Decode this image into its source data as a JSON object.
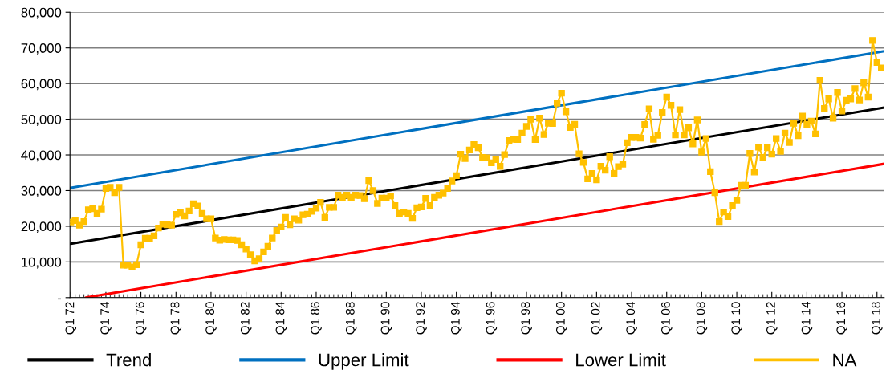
{
  "chart_data": {
    "type": "line",
    "x": [
      "1972-01",
      "1972-04",
      "1972-07",
      "1972-10",
      "1973-01",
      "1973-04",
      "1973-07",
      "1973-10",
      "1974-01",
      "1974-04",
      "1974-07",
      "1974-10",
      "1975-01",
      "1975-04",
      "1975-07",
      "1975-10",
      "1976-01",
      "1976-04",
      "1976-07",
      "1976-10",
      "1977-01",
      "1977-04",
      "1977-07",
      "1977-10",
      "1978-01",
      "1978-04",
      "1978-07",
      "1978-10",
      "1979-01",
      "1979-04",
      "1979-07",
      "1979-10",
      "1980-01",
      "1980-04",
      "1980-07",
      "1980-10",
      "1981-01",
      "1981-04",
      "1981-07",
      "1981-10",
      "1982-01",
      "1982-04",
      "1982-07",
      "1982-10",
      "1983-01",
      "1983-04",
      "1983-07",
      "1983-10",
      "1984-01",
      "1984-04",
      "1984-07",
      "1984-10",
      "1985-01",
      "1985-04",
      "1985-07",
      "1985-10",
      "1986-01",
      "1986-04",
      "1986-07",
      "1986-10",
      "1987-01",
      "1987-04",
      "1987-07",
      "1987-10",
      "1988-01",
      "1988-04",
      "1988-07",
      "1988-10",
      "1989-01",
      "1989-04",
      "1989-07",
      "1989-10",
      "1990-01",
      "1990-04",
      "1990-07",
      "1990-10",
      "1991-01",
      "1991-04",
      "1991-07",
      "1991-10",
      "1992-01",
      "1992-04",
      "1992-07",
      "1992-10",
      "1993-01",
      "1993-04",
      "1993-07",
      "1993-10",
      "1994-01",
      "1994-04",
      "1994-07",
      "1994-10",
      "1995-01",
      "1995-04",
      "1995-07",
      "1995-10",
      "1996-01",
      "1996-04",
      "1996-07",
      "1996-10",
      "1997-01",
      "1997-04",
      "1997-07",
      "1997-10",
      "1998-01",
      "1998-04",
      "1998-07",
      "1998-10",
      "1999-01",
      "1999-04",
      "1999-07",
      "1999-10",
      "2000-01",
      "2000-04",
      "2000-07",
      "2000-10",
      "2001-01",
      "2001-04",
      "2001-07",
      "2001-10",
      "2002-01",
      "2002-04",
      "2002-07",
      "2002-10",
      "2003-01",
      "2003-04",
      "2003-07",
      "2003-10",
      "2004-01",
      "2004-04",
      "2004-07",
      "2004-10",
      "2005-01",
      "2005-04",
      "2005-07",
      "2005-10",
      "2006-01",
      "2006-04",
      "2006-07",
      "2006-10",
      "2007-01",
      "2007-04",
      "2007-07",
      "2007-10",
      "2008-01",
      "2008-04",
      "2008-07",
      "2008-10",
      "2009-01",
      "2009-04",
      "2009-07",
      "2009-10",
      "2010-01",
      "2010-04",
      "2010-07",
      "2010-10",
      "2011-01",
      "2011-04",
      "2011-07",
      "2011-10",
      "2012-01",
      "2012-04",
      "2012-07",
      "2012-10",
      "2013-01",
      "2013-04",
      "2013-07",
      "2013-10",
      "2014-01",
      "2014-04",
      "2014-07",
      "2014-10",
      "2015-01",
      "2015-04",
      "2015-07",
      "2015-10",
      "2016-01",
      "2016-04",
      "2016-07",
      "2016-10",
      "2017-01",
      "2017-04",
      "2017-07",
      "2017-10",
      "2018-01",
      "2018-04"
    ],
    "xlim": [
      "1971-12-15",
      "2018-06-01"
    ],
    "xticks": [
      {
        "value": "1972-01",
        "label": "Q1 72"
      },
      {
        "value": "1974-01",
        "label": "Q1 74"
      },
      {
        "value": "1976-01",
        "label": "Q1 76"
      },
      {
        "value": "1978-01",
        "label": "Q1 78"
      },
      {
        "value": "1980-01",
        "label": "Q1 80"
      },
      {
        "value": "1982-01",
        "label": "Q1 82"
      },
      {
        "value": "1984-01",
        "label": "Q1 84"
      },
      {
        "value": "1986-01",
        "label": "Q1 86"
      },
      {
        "value": "1988-01",
        "label": "Q1 88"
      },
      {
        "value": "1990-01",
        "label": "Q1 90"
      },
      {
        "value": "1992-01",
        "label": "Q1 92"
      },
      {
        "value": "1994-01",
        "label": "Q1 94"
      },
      {
        "value": "1996-01",
        "label": "Q1 96"
      },
      {
        "value": "1998-01",
        "label": "Q1 98"
      },
      {
        "value": "2000-01",
        "label": "Q1 00"
      },
      {
        "value": "2002-01",
        "label": "Q1 02"
      },
      {
        "value": "2004-01",
        "label": "Q1 04"
      },
      {
        "value": "2006-01",
        "label": "Q1 06"
      },
      {
        "value": "2008-01",
        "label": "Q1 08"
      },
      {
        "value": "2010-01",
        "label": "Q1 10"
      },
      {
        "value": "2012-01",
        "label": "Q1 12"
      },
      {
        "value": "2014-01",
        "label": "Q1 14"
      },
      {
        "value": "2016-01",
        "label": "Q1 16"
      },
      {
        "value": "2018-01",
        "label": "Q1 18"
      }
    ],
    "ylim": [
      0,
      80000
    ],
    "yticks": [
      {
        "value": 0,
        "label": "-"
      },
      {
        "value": 10000,
        "label": "10,000"
      },
      {
        "value": 20000,
        "label": "20,000"
      },
      {
        "value": 30000,
        "label": "30,000"
      },
      {
        "value": 40000,
        "label": "40,000"
      },
      {
        "value": 50000,
        "label": "50,000"
      },
      {
        "value": 60000,
        "label": "60,000"
      },
      {
        "value": 70000,
        "label": "70,000"
      },
      {
        "value": 80000,
        "label": "80,000"
      }
    ],
    "grid": "y",
    "legend": "bottom",
    "line_style": "solid",
    "series": [
      {
        "name": "Trend",
        "color": "#000000",
        "marker": "none",
        "x": [
          "1972-01",
          "2018-06-01"
        ],
        "values": [
          15100,
          53300
        ]
      },
      {
        "name": "Upper Limit",
        "color": "#0070c0",
        "marker": "none",
        "x": [
          "1972-01",
          "2018-06-01"
        ],
        "values": [
          30800,
          69100
        ]
      },
      {
        "name": "Lower Limit",
        "color": "#ff0000",
        "marker": "none",
        "x": [
          "1972-11-07",
          "2018-06-01"
        ],
        "values": [
          0,
          37500
        ]
      },
      {
        "name": "NA",
        "color": "#ffc000",
        "marker": "square",
        "values": [
          21200,
          21600,
          20300,
          21300,
          24600,
          24900,
          23600,
          24800,
          30600,
          30900,
          29400,
          30900,
          9100,
          9100,
          8600,
          9200,
          14800,
          16600,
          16600,
          17300,
          19500,
          20600,
          20400,
          20300,
          23300,
          23800,
          22900,
          24300,
          26300,
          25700,
          23600,
          22100,
          22100,
          16700,
          16100,
          16300,
          16200,
          16200,
          16000,
          14800,
          13600,
          12000,
          10300,
          10900,
          12800,
          14400,
          16700,
          18800,
          19800,
          22500,
          20400,
          22100,
          21700,
          23200,
          23400,
          24200,
          25100,
          26700,
          22500,
          25300,
          25300,
          28700,
          28100,
          28700,
          28100,
          28700,
          28600,
          27700,
          32800,
          30000,
          26400,
          27900,
          27900,
          28500,
          25800,
          23600,
          24000,
          23600,
          22200,
          25200,
          25400,
          27800,
          25800,
          28100,
          28700,
          29300,
          30600,
          32700,
          34200,
          40200,
          39000,
          41400,
          42900,
          42000,
          39300,
          39200,
          37800,
          38700,
          36800,
          40100,
          44000,
          44400,
          44300,
          46100,
          48000,
          50000,
          44300,
          50300,
          45700,
          48900,
          48800,
          54500,
          57300,
          52100,
          47700,
          48600,
          40300,
          37900,
          33300,
          34800,
          33000,
          36800,
          35700,
          39500,
          34800,
          36700,
          37400,
          43400,
          44900,
          44900,
          44700,
          48500,
          52900,
          44400,
          45500,
          51900,
          56200,
          53900,
          45600,
          52700,
          45600,
          47600,
          43100,
          49800,
          40800,
          44600,
          35300,
          29400,
          21300,
          24000,
          22700,
          25800,
          27300,
          31500,
          31500,
          40400,
          35200,
          42200,
          39300,
          42000,
          40200,
          44600,
          41000,
          46100,
          43500,
          48900,
          45400,
          50900,
          48500,
          49500,
          45900,
          60900,
          53000,
          55700,
          50300,
          57500,
          52300,
          55300,
          55700,
          58600,
          55400,
          60200,
          56200,
          72100,
          65900,
          64400
        ]
      }
    ]
  }
}
